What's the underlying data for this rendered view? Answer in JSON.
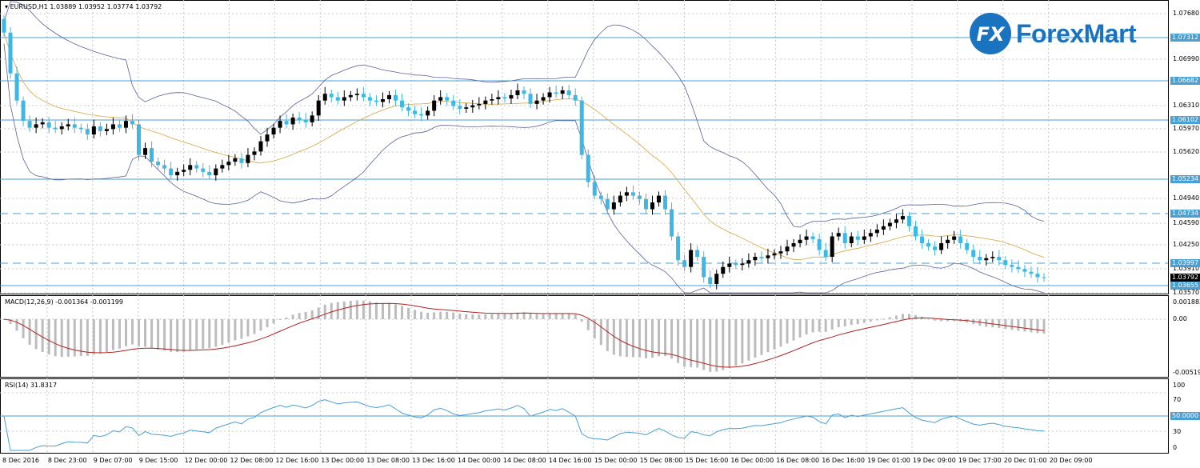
{
  "main_chart": {
    "title": "EURUSD,H1  1.03889 1.03952 1.03774 1.03792",
    "price_axis": [
      "1.07680",
      "1.06990",
      "1.06310",
      "1.05970",
      "1.05620",
      "1.04940",
      "1.04590",
      "1.04250",
      "1.03910",
      "1.03570"
    ],
    "levels": [
      "1.07312",
      "1.06682",
      "1.06102",
      "1.05234",
      "1.04734",
      "1.03997",
      "1.03655"
    ],
    "current_price": "1.03792"
  },
  "logo": {
    "text": "ForexMart",
    "mark": "FX",
    "color": "#1a73bf"
  },
  "macd": {
    "title": "MACD(12,26,9) -0.001364 -0.001199",
    "axis": [
      "0.001882",
      "0.00",
      "-0.005193"
    ]
  },
  "rsi": {
    "title": "RSI(14) 31.8317",
    "axis": [
      "100",
      "70",
      "50.0000",
      "30",
      "0"
    ]
  },
  "time_axis": [
    "8 Dec 2016",
    "8 Dec 23:00",
    "9 Dec 07:00",
    "9 Dec 15:00",
    "12 Dec 00:00",
    "12 Dec 08:00",
    "12 Dec 16:00",
    "13 Dec 00:00",
    "13 Dec 08:00",
    "13 Dec 16:00",
    "14 Dec 00:00",
    "14 Dec 08:00",
    "14 Dec 16:00",
    "15 Dec 00:00",
    "15 Dec 08:00",
    "15 Dec 16:00",
    "16 Dec 00:00",
    "16 Dec 08:00",
    "16 Dec 16:00",
    "19 Dec 01:00",
    "19 Dec 09:00",
    "19 Dec 17:00",
    "20 Dec 01:00",
    "20 Dec 09:00"
  ],
  "colors": {
    "bull": "#000000",
    "bear": "#3db7e4",
    "level": "#4a9fd4",
    "grid": "#c8c8c8",
    "macd_signal": "#b22222",
    "macd_hist": "#bcbcbc",
    "rsi_line": "#4a9fd4"
  },
  "chart_data": {
    "type": "candlestick",
    "symbol": "EURUSD",
    "timeframe": "H1",
    "ylim": [
      1.0357,
      1.0768
    ],
    "close_series": [
      1.074,
      1.068,
      1.064,
      1.061,
      1.06,
      1.0605,
      1.0608,
      1.06,
      1.0598,
      1.0602,
      1.0605,
      1.06,
      1.0598,
      1.059,
      1.0602,
      1.0595,
      1.0598,
      1.0605,
      1.06,
      1.061,
      1.0605,
      1.056,
      1.057,
      1.055,
      1.0545,
      1.054,
      1.053,
      1.0535,
      1.0538,
      1.0545,
      1.054,
      1.0535,
      1.053,
      1.054,
      1.0545,
      1.055,
      1.0555,
      1.0548,
      1.056,
      1.0565,
      1.058,
      1.059,
      1.06,
      1.061,
      1.0605,
      1.0615,
      1.0612,
      1.0608,
      1.0618,
      1.064,
      1.065,
      1.0645,
      1.064,
      1.0645,
      1.0648,
      1.065,
      1.0645,
      1.064,
      1.0638,
      1.0642,
      1.0648,
      1.064,
      1.063,
      1.0625,
      1.062,
      1.0618,
      1.0625,
      1.064,
      1.0645,
      1.064,
      1.0632,
      1.0628,
      1.063,
      1.0633,
      1.0635,
      1.064,
      1.0642,
      1.0645,
      1.0643,
      1.0648,
      1.0655,
      1.065,
      1.0635,
      1.064,
      1.0645,
      1.0652,
      1.065,
      1.0655,
      1.0648,
      1.064,
      1.056,
      1.052,
      1.05,
      1.0495,
      1.048,
      1.049,
      1.05,
      1.0505,
      1.05,
      1.0495,
      1.048,
      1.049,
      1.05,
      1.048,
      1.044,
      1.0405,
      1.0395,
      1.042,
      1.041,
      1.038,
      1.037,
      1.0385,
      1.0395,
      1.04,
      1.0398,
      1.04,
      1.0405,
      1.041,
      1.0408,
      1.0412,
      1.0415,
      1.0418,
      1.0425,
      1.043,
      1.0435,
      1.044,
      1.0436,
      1.042,
      1.041,
      1.044,
      1.0445,
      1.043,
      1.044,
      1.0435,
      1.044,
      1.0445,
      1.045,
      1.0455,
      1.046,
      1.0465,
      1.047,
      1.0455,
      1.044,
      1.043,
      1.0425,
      1.042,
      1.043,
      1.0435,
      1.044,
      1.043,
      1.042,
      1.041,
      1.0405,
      1.0408,
      1.041,
      1.0405,
      1.0398,
      1.0395,
      1.0392,
      1.0388,
      1.0385,
      1.038,
      1.0379
    ]
  }
}
